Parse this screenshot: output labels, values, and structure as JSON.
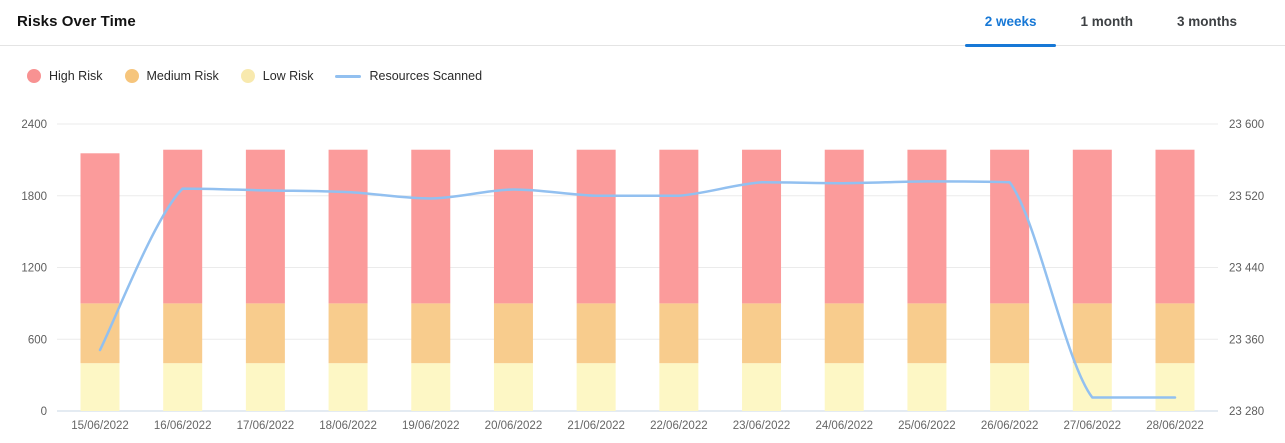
{
  "header": {
    "title": "Risks Over Time",
    "tabs": [
      {
        "label": "2 weeks",
        "active": true
      },
      {
        "label": "1 month",
        "active": false
      },
      {
        "label": "3 months",
        "active": false
      }
    ]
  },
  "legend": {
    "items": [
      {
        "label": "High Risk",
        "marker": "circle",
        "color": "#F89292"
      },
      {
        "label": "Medium Risk",
        "marker": "circle",
        "color": "#F6C57C"
      },
      {
        "label": "Low Risk",
        "marker": "circle",
        "color": "#F8E9AE"
      },
      {
        "label": "Resources Scanned",
        "marker": "line",
        "color": "#92C0F0"
      }
    ]
  },
  "chart_data": {
    "type": "bar",
    "subtype": "stacked-bars-with-line-overlay",
    "title": "Risks Over Time",
    "grid": "horizontal",
    "legend_position": "top-left",
    "categories": [
      "15/06/2022",
      "16/06/2022",
      "17/06/2022",
      "18/06/2022",
      "19/06/2022",
      "20/06/2022",
      "21/06/2022",
      "22/06/2022",
      "23/06/2022",
      "24/06/2022",
      "25/06/2022",
      "26/06/2022",
      "27/06/2022",
      "28/06/2022"
    ],
    "series": [
      {
        "name": "Low Risk",
        "type": "bar",
        "axis": "left",
        "color": "#FDF7C5",
        "values": [
          400,
          400,
          400,
          400,
          400,
          400,
          400,
          400,
          400,
          400,
          400,
          400,
          400,
          400
        ]
      },
      {
        "name": "Medium Risk",
        "type": "bar",
        "axis": "left",
        "color": "#F8CC8D",
        "values": [
          500,
          500,
          500,
          500,
          500,
          500,
          500,
          500,
          500,
          500,
          500,
          500,
          500,
          500
        ]
      },
      {
        "name": "High Risk",
        "type": "bar",
        "axis": "left",
        "color": "#FB9B9B",
        "values": [
          1255,
          1285,
          1285,
          1285,
          1285,
          1285,
          1285,
          1285,
          1285,
          1285,
          1285,
          1285,
          1285,
          1285
        ]
      },
      {
        "name": "Resources Scanned",
        "type": "line",
        "axis": "right",
        "color": "#92C0F0",
        "values": [
          23348,
          23528,
          23526,
          23524,
          23517,
          23527,
          23520,
          23520,
          23535,
          23534,
          23536,
          23535,
          23295,
          23295
        ]
      }
    ],
    "left_axis": {
      "min": 0,
      "max": 2400,
      "ticks": [
        0,
        600,
        1200,
        1800,
        2400
      ],
      "tick_labels": [
        "0",
        "600",
        "1200",
        "1800",
        "2400"
      ]
    },
    "right_axis": {
      "min": 23280,
      "max": 23600,
      "ticks": [
        23280,
        23360,
        23440,
        23520,
        23600
      ],
      "tick_labels": [
        "23 280",
        "23 360",
        "23 440",
        "23 520",
        "23 600"
      ]
    }
  },
  "colors": {
    "tab_active": "#1778D6",
    "tab_inactive": "#3D4043",
    "grid_line": "#EBEBEB",
    "baseline": "#C9D7E6",
    "axis_text": "#5E5E5E",
    "header_divider": "#E4E4E4",
    "background": "#FFFFFF"
  }
}
